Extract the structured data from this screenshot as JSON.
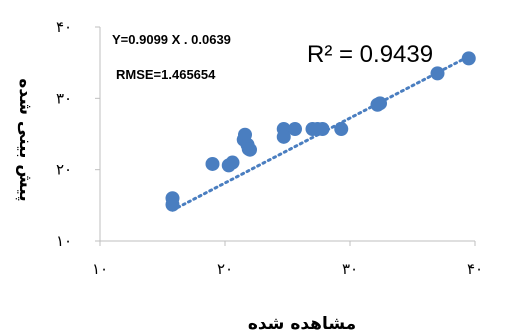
{
  "chart_data": {
    "type": "scatter",
    "xlabel": "مشاهده شده",
    "ylabel": "پیش بینی شده",
    "xlim": [
      10,
      40
    ],
    "ylim": [
      10,
      40
    ],
    "xticks": [
      "۱۰",
      "۲۰",
      "۳۰",
      "۴۰"
    ],
    "yticks": [
      "۱۰",
      "۲۰",
      "۳۰",
      "۴۰"
    ],
    "grid": false,
    "marker_color": "#4A7EC0",
    "trendline": {
      "style": "dotted",
      "color": "#4A7EC0",
      "slope": 0.9099,
      "intercept": -0.0639
    },
    "annotations": {
      "equation": "Y=0.9099 X . 0.0639",
      "rmse": "RMSE=1.465654",
      "r2": "R² = 0.9439"
    },
    "points": [
      {
        "x": 15.8,
        "y": 15.1
      },
      {
        "x": 15.8,
        "y": 16.0
      },
      {
        "x": 19.0,
        "y": 20.8
      },
      {
        "x": 20.3,
        "y": 20.6
      },
      {
        "x": 20.6,
        "y": 21.0
      },
      {
        "x": 21.5,
        "y": 24.2
      },
      {
        "x": 21.6,
        "y": 24.9
      },
      {
        "x": 21.8,
        "y": 23.5
      },
      {
        "x": 21.9,
        "y": 22.9
      },
      {
        "x": 22.0,
        "y": 22.8
      },
      {
        "x": 24.7,
        "y": 25.7
      },
      {
        "x": 24.7,
        "y": 24.6
      },
      {
        "x": 25.6,
        "y": 25.7
      },
      {
        "x": 27.0,
        "y": 25.7
      },
      {
        "x": 27.4,
        "y": 25.7
      },
      {
        "x": 27.8,
        "y": 25.7
      },
      {
        "x": 29.3,
        "y": 25.7
      },
      {
        "x": 32.2,
        "y": 29.1
      },
      {
        "x": 32.4,
        "y": 29.3
      },
      {
        "x": 37.0,
        "y": 33.5
      },
      {
        "x": 39.5,
        "y": 35.6
      }
    ]
  }
}
